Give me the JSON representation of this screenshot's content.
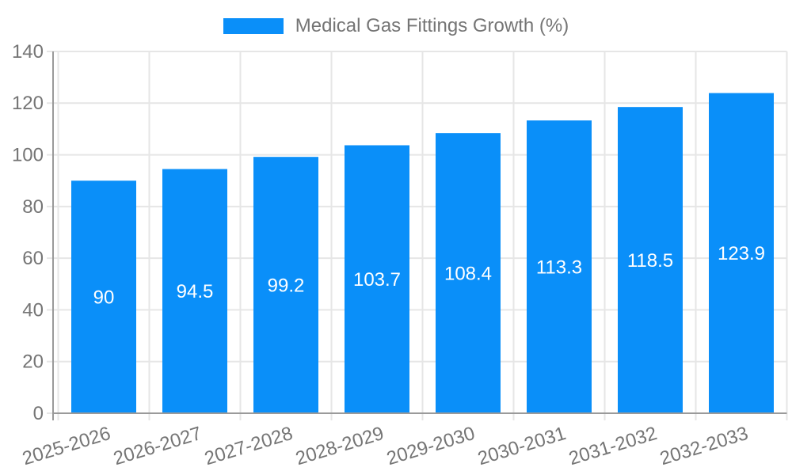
{
  "chart_data": {
    "type": "bar",
    "title": "Medical Gas Fittings Growth (%)",
    "categories": [
      "2025-2026",
      "2026-2027",
      "2027-2028",
      "2028-2029",
      "2029-2030",
      "2030-2031",
      "2031-2032",
      "2032-2033"
    ],
    "values": [
      90,
      94.5,
      99.2,
      103.7,
      108.4,
      113.3,
      118.5,
      123.9
    ],
    "value_labels": [
      "90",
      "94.5",
      "99.2",
      "103.7",
      "108.4",
      "113.3",
      "118.5",
      "123.9"
    ],
    "xlabel": "",
    "ylabel": "",
    "ylim": [
      0,
      140
    ],
    "yticks": [
      0,
      20,
      40,
      60,
      80,
      100,
      120,
      140
    ],
    "grid": true,
    "legend_position": "top",
    "x_label_rotation_deg": -17,
    "colors": {
      "bar": "#0a8ff9",
      "grid": "#e6e6e6",
      "axis": "#9a9a9a",
      "tick": "#e6e6e6",
      "text": "#757575",
      "value_label": "#ffffff",
      "background": "#ffffff"
    }
  }
}
